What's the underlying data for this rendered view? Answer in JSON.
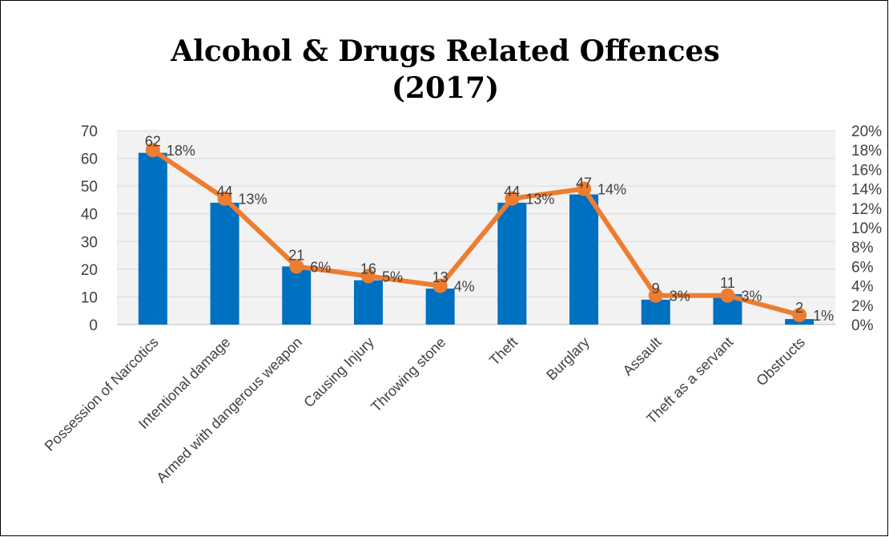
{
  "chart_data": {
    "type": "bar",
    "title_line1": "Alcohol & Drugs Related Offences",
    "title_line2": "(2017)",
    "categories": [
      "Possession of Narcotics",
      "Intentional damage",
      "Armed with dangerous weapon",
      "Causing Injury",
      "Throwing stone",
      "Theft",
      "Burglary",
      "Assault",
      "Theft as a servant",
      "Obstructs"
    ],
    "series": [
      {
        "type": "bar",
        "axis": "left",
        "color": "#0070C0",
        "values": [
          62,
          44,
          21,
          16,
          13,
          44,
          47,
          9,
          11,
          2
        ],
        "labels": [
          "62",
          "44",
          "21",
          "16",
          "13",
          "44",
          "47",
          "9",
          "11",
          "2"
        ]
      },
      {
        "type": "line",
        "axis": "right",
        "color": "#ED7D31",
        "values": [
          18,
          13,
          6,
          5,
          4,
          13,
          14,
          3,
          3,
          1
        ],
        "labels": [
          "18%",
          "13%",
          "6%",
          "5%",
          "4%",
          "13%",
          "14%",
          "3%",
          "3%",
          "1%"
        ]
      }
    ],
    "left_axis": {
      "ylim": [
        0,
        70
      ],
      "ticks": [
        "0",
        "10",
        "20",
        "30",
        "40",
        "50",
        "60",
        "70"
      ]
    },
    "right_axis": {
      "ylim": [
        0,
        20
      ],
      "ticks": [
        "0%",
        "2%",
        "4%",
        "6%",
        "8%",
        "10%",
        "12%",
        "14%",
        "16%",
        "18%",
        "20%"
      ]
    },
    "grid": true,
    "legend": "none"
  }
}
